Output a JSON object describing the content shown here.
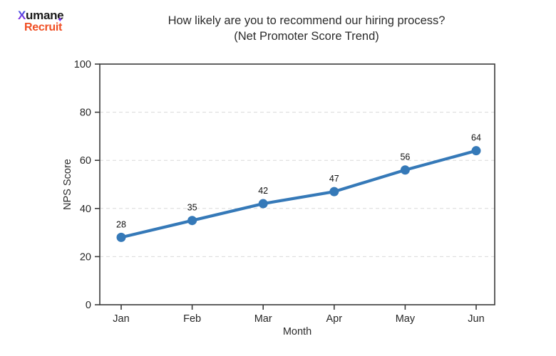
{
  "logo": {
    "word1_initial": "X",
    "word1_rest": "umane",
    "word2": "Recruit",
    "sparkle_icon": "✦"
  },
  "title": {
    "line1": "How likely are you to recommend our hiring process?",
    "line2": "(Net Promoter Score Trend)"
  },
  "colors": {
    "accent-line": "#3579b8",
    "logo-black": "#1b1b1b",
    "logo-orange": "#f04e23",
    "x-grad-top": "#2f5fe0",
    "x-grad-bottom": "#8a2be2",
    "sparkle": "#7a2ff0",
    "axis": "#3a3a3a",
    "grid": "#d9d9d9",
    "text": "#2b2b2b",
    "tick-text": "#262626"
  },
  "chart_data": {
    "type": "line",
    "title": "How likely are you to recommend our hiring process? (Net Promoter Score Trend)",
    "x": [
      "Jan",
      "Feb",
      "Mar",
      "Apr",
      "May",
      "Jun"
    ],
    "series": [
      {
        "name": "NPS Score",
        "values": [
          28,
          35,
          42,
          47,
          56,
          64
        ]
      }
    ],
    "xlabel": "Month",
    "ylabel": "NPS Score",
    "ylim": [
      0,
      100
    ],
    "yticks": [
      0,
      20,
      40,
      60,
      80,
      100
    ],
    "grid": "horizontal-dashed",
    "legend": "none",
    "marker": "circle",
    "line_color": "#3579b8",
    "point_labels_shown": true
  }
}
